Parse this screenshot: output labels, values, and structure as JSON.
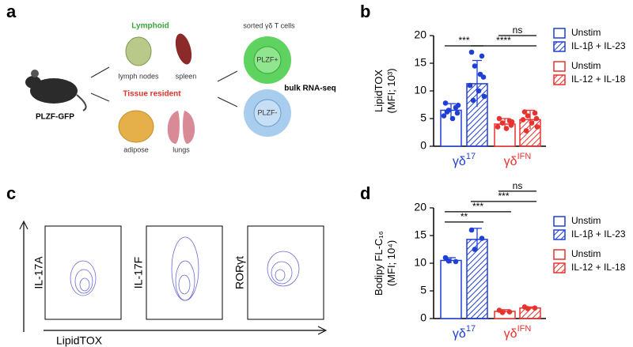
{
  "panels": {
    "a": "a",
    "b": "b",
    "c": "c",
    "d": "d"
  },
  "diagram": {
    "lymphoid": "Lymphoid",
    "lymph_nodes": "lymph nodes",
    "spleen": "spleen",
    "tissue_resident": "Tissue resident",
    "adipose": "adipose",
    "lungs": "lungs",
    "mouse": "PLZF-GFP",
    "sorted": "sorted γδ T cells",
    "pos": "PLZF+",
    "neg": "PLZF-",
    "rnaseq": "bulk RNA-seq"
  },
  "flow": {
    "y_labels": [
      "IL-17A",
      "IL-17F",
      "RORγt"
    ],
    "x_label": "LipidTOX"
  },
  "chart_data": [
    {
      "type": "bar",
      "ylabel": [
        "LipidTOX",
        "(MFI; 10³)"
      ],
      "ylim": [
        0,
        20
      ],
      "yticks": [
        0,
        5,
        10,
        15,
        20
      ],
      "series": [
        {
          "name": "Unstim",
          "color": "#1f3fd6",
          "hatched": false,
          "value": 6.5,
          "error": 1.2,
          "points": [
            7.8,
            7.0,
            6.5,
            6.0,
            5.5,
            5.0,
            7.4,
            6.2
          ]
        },
        {
          "name": "IL-1β + IL-23",
          "color": "#1f3fd6",
          "hatched": true,
          "value": 11.3,
          "error": 4.2,
          "points": [
            17.0,
            16.3,
            14.5,
            12.5,
            11.0,
            10.0,
            9.0,
            8.3,
            13.0
          ]
        },
        {
          "name": "Unstim",
          "color": "#e8322f",
          "hatched": false,
          "value": 4.0,
          "error": 1.0,
          "points": [
            5.0,
            4.6,
            4.2,
            3.8,
            3.5,
            3.2,
            4.4
          ]
        },
        {
          "name": "IL-12 + IL-18",
          "color": "#e8322f",
          "hatched": true,
          "value": 4.8,
          "error": 1.7,
          "points": [
            6.2,
            6.0,
            5.5,
            5.0,
            4.8,
            4.2,
            3.5,
            2.8
          ]
        }
      ],
      "groups": [
        {
          "label": "γδ",
          "sup": "17",
          "color": "#1f3fd6"
        },
        {
          "label": "γδ",
          "sup": "IFN",
          "color": "#e8322f"
        }
      ],
      "significance": [
        {
          "label": "***",
          "between": [
            0,
            1
          ]
        },
        {
          "label": "****",
          "between": [
            1,
            3
          ]
        },
        {
          "label": "ns",
          "between": [
            2,
            3
          ]
        }
      ]
    },
    {
      "type": "bar",
      "ylabel": [
        "Bodipy FL-C₁₆",
        "(MFI; 10⁴)"
      ],
      "ylim": [
        0,
        20
      ],
      "yticks": [
        0,
        5,
        10,
        15,
        20
      ],
      "series": [
        {
          "name": "Unstim",
          "color": "#1f3fd6",
          "hatched": false,
          "value": 10.5,
          "error": 0.5,
          "points": [
            11.0,
            10.3,
            10.4
          ]
        },
        {
          "name": "IL-1β + IL-23",
          "color": "#1f3fd6",
          "hatched": true,
          "value": 14.3,
          "error": 2.0,
          "points": [
            16.0,
            14.5,
            12.5
          ]
        },
        {
          "name": "Unstim",
          "color": "#e8322f",
          "hatched": false,
          "value": 1.3,
          "error": 0.3,
          "points": [
            1.5,
            1.2,
            1.1
          ]
        },
        {
          "name": "IL-12 + IL-18",
          "color": "#e8322f",
          "hatched": true,
          "value": 1.9,
          "error": 0.2,
          "points": [
            2.1,
            1.9,
            1.8
          ]
        }
      ],
      "groups": [
        {
          "label": "γδ",
          "sup": "17",
          "color": "#1f3fd6"
        },
        {
          "label": "γδ",
          "sup": "IFN",
          "color": "#e8322f"
        }
      ],
      "significance": [
        {
          "label": "**",
          "between": [
            0,
            1
          ]
        },
        {
          "label": "***",
          "between": [
            0,
            2
          ]
        },
        {
          "label": "***",
          "between": [
            1,
            3
          ]
        },
        {
          "label": "ns",
          "between": [
            2,
            3
          ]
        }
      ]
    }
  ]
}
